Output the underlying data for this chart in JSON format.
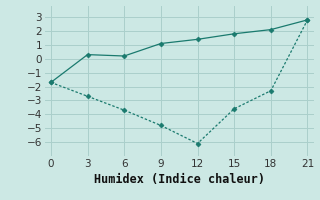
{
  "line1_x": [
    0,
    3,
    6,
    9,
    12,
    15,
    18,
    21
  ],
  "line1_y": [
    -1.7,
    0.3,
    0.2,
    1.1,
    1.4,
    1.8,
    2.1,
    2.8
  ],
  "line2_x": [
    0,
    3,
    6,
    9,
    12,
    15,
    18,
    21
  ],
  "line2_y": [
    -1.7,
    -2.7,
    -3.7,
    -4.8,
    -6.1,
    -3.6,
    -2.3,
    2.8
  ],
  "line_color": "#1a7a6e",
  "xlabel": "Humidex (Indice chaleur)",
  "xlim": [
    -0.5,
    21.5
  ],
  "ylim": [
    -7.0,
    3.8
  ],
  "yticks": [
    -6,
    -5,
    -4,
    -3,
    -2,
    -1,
    0,
    1,
    2,
    3
  ],
  "xticks": [
    0,
    3,
    6,
    9,
    12,
    15,
    18,
    21
  ],
  "bg_color": "#cce8e4",
  "grid_color": "#aacfcb",
  "xlabel_fontsize": 8.5,
  "tick_fontsize": 7.5
}
